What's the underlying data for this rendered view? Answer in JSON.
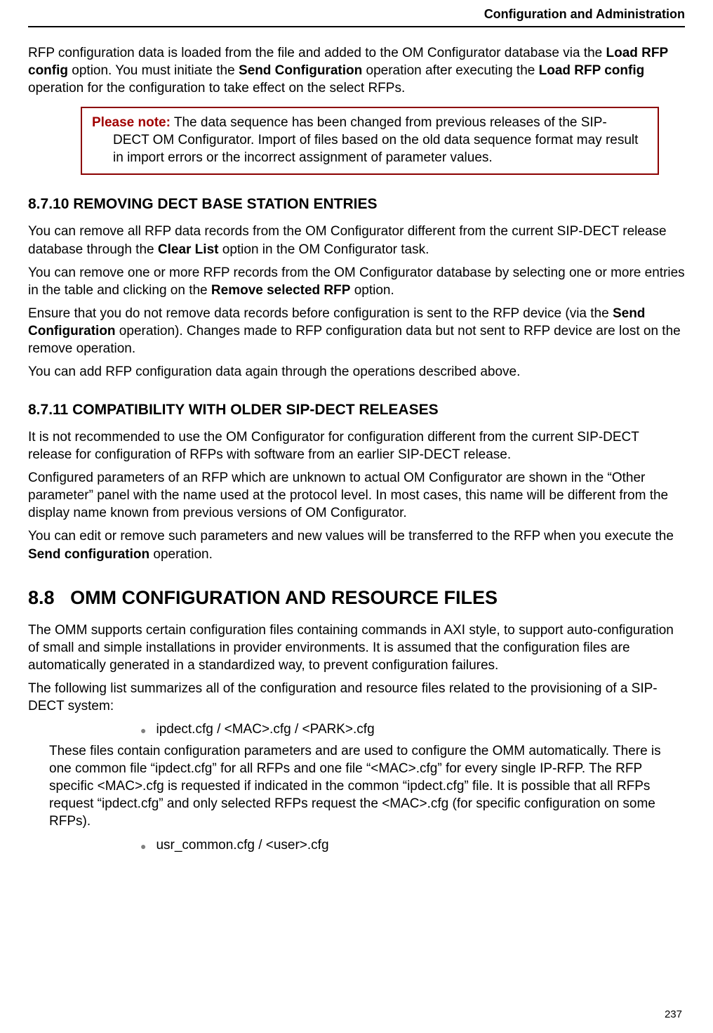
{
  "header": {
    "title": "Configuration and Administration"
  },
  "intro": {
    "text_prefix": "RFP configuration data is loaded from the file and added to the OM Configurator database via the ",
    "bold1": "Load RFP config",
    "mid1": " option. You must initiate the ",
    "bold2": "Send Configuration",
    "mid2": " operation after executing the ",
    "bold3": "Load RFP config",
    "suffix": " operation for the configuration to take effect on the select RFPs."
  },
  "note": {
    "label": "Please note:",
    "line1": "  The data sequence has been changed from previous releases of the SIP-",
    "line2": "DECT OM Configurator. Import of files based on the old data sequence format may result in import errors or the incorrect assignment of parameter values."
  },
  "sec8710": {
    "number": "8.7.10",
    "title": "REMOVING DECT BASE STATION ENTRIES",
    "p1a": "You can remove all RFP data records from the OM Configurator different from the current SIP-DECT release database through the ",
    "p1b": "Clear List",
    "p1c": " option in the OM Configurator task.",
    "p2a": "You can remove one or more RFP records from the OM Configurator database by selecting one or more entries in the table and clicking on the ",
    "p2b": "Remove selected RFP",
    "p2c": " option.",
    "p3a": "Ensure that you do not remove data records before configuration is sent to the RFP device (via the ",
    "p3b": "Send Configuration",
    "p3c": " operation). Changes made to RFP configuration data but not sent to RFP device are lost on the remove operation.",
    "p4": "You can add RFP configuration data again through the operations described above."
  },
  "sec8711": {
    "number": "8.7.11",
    "title": "COMPATIBILITY WITH OLDER SIP-DECT RELEASES",
    "p1": "It is not recommended to use the OM Configurator for configuration different from the current SIP-DECT release for configuration of RFPs with software from an earlier SIP-DECT release.",
    "p2": "Configured parameters of an RFP which are unknown to actual OM Configurator are shown in the “Other parameter” panel with the name used at the protocol level. In most cases, this name will be different from the display name known from previous versions of OM Configurator.",
    "p3a": "You can edit or remove such parameters and new values will be transferred to the RFP when you execute the ",
    "p3b": "Send configuration",
    "p3c": " operation."
  },
  "sec88": {
    "number": "8.8",
    "title": "OMM CONFIGURATION AND RESOURCE FILES",
    "p1": "The OMM supports certain configuration files containing commands in AXI style, to support auto-configuration of small and simple installations in provider environments. It is assumed that the configuration files are automatically generated in a standardized way, to prevent configuration failures.",
    "p2": "The following list summarizes all of the configuration and resource files related to the provisioning of a SIP-DECT system:",
    "bullet1": "ipdect.cfg / <MAC>.cfg / <PARK>.cfg",
    "desc1": "These files contain configuration parameters and are used to configure the OMM automatically. There is one common file “ipdect.cfg” for all RFPs and one file “<MAC>.cfg” for every single IP-RFP. The RFP specific <MAC>.cfg is requested if indicated in the common “ipdect.cfg” file. It is possible that all RFPs request “ipdect.cfg” and only selected RFPs request the <MAC>.cfg (for specific configuration on some RFPs).",
    "bullet2": "usr_common.cfg / <user>.cfg"
  },
  "footer": {
    "page": "237"
  },
  "colors": {
    "note_border": "#8b0000",
    "note_label": "#a00000",
    "bullet": "#808080",
    "text": "#000000",
    "background": "#ffffff"
  },
  "typography": {
    "body_fontsize": 19,
    "h3_fontsize": 21,
    "h2_fontsize": 27,
    "header_fontsize": 18,
    "pagenum_fontsize": 15
  }
}
